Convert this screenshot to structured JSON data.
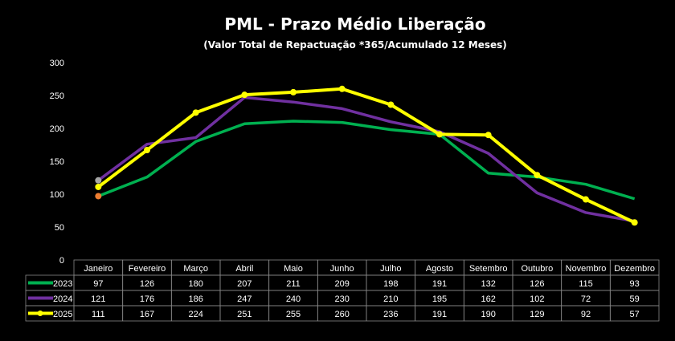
{
  "chart_data": {
    "type": "line",
    "title": "PML - Prazo Médio Liberação",
    "subtitle": "(Valor Total de Repactuação *365/Acumulado 12 Meses)",
    "xlabel": "",
    "ylabel": "",
    "ylim": [
      0,
      300
    ],
    "yticks": [
      "0",
      "50",
      "100",
      "150",
      "200",
      "250",
      "300"
    ],
    "grid": false,
    "legend": "data-table",
    "categories": [
      "Janeiro",
      "Fevereiro",
      "Março",
      "Abril",
      "Maio",
      "Junho",
      "Julho",
      "Agosto",
      "Setembro",
      "Outubro",
      "Novembro",
      "Dezembro"
    ],
    "series": [
      {
        "name": "2023",
        "color": "#00b050",
        "values": [
          97,
          126,
          180,
          207,
          211,
          209,
          198,
          191,
          132,
          126,
          115,
          93
        ]
      },
      {
        "name": "2024",
        "color": "#7030a0",
        "values": [
          121,
          176,
          186,
          247,
          240,
          230,
          210,
          195,
          162,
          102,
          72,
          59
        ]
      },
      {
        "name": "2025",
        "color": "#ffff00",
        "values": [
          111,
          167,
          224,
          251,
          255,
          260,
          236,
          191,
          190,
          129,
          92,
          57
        ]
      }
    ]
  }
}
